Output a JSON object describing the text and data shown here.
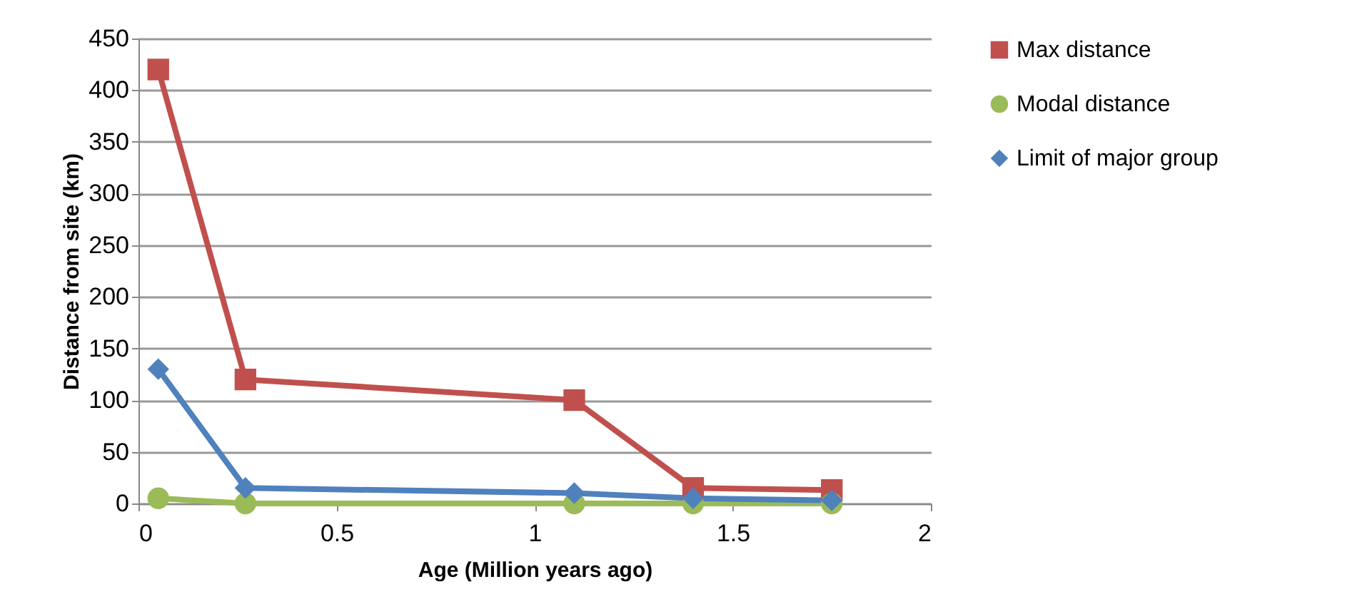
{
  "chart_data": {
    "type": "line",
    "xlabel": "Age (Million years ago)",
    "ylabel": "Distance from site (km)",
    "x": [
      0.05,
      0.27,
      1.1,
      1.4,
      1.75
    ],
    "series": [
      {
        "name": "Max distance",
        "color": "#c0504d",
        "marker": "square",
        "values": [
          420,
          120,
          100,
          15,
          13
        ]
      },
      {
        "name": "Modal distance",
        "color": "#9bbb59",
        "marker": "circle",
        "values": [
          5,
          0,
          0,
          0,
          0
        ]
      },
      {
        "name": "Limit of major group",
        "color": "#4f81bd",
        "marker": "diamond",
        "values": [
          130,
          15,
          10,
          5,
          3
        ]
      }
    ],
    "xlim": [
      0,
      2
    ],
    "xticks": [
      0,
      0.5,
      1,
      1.5,
      2
    ],
    "ylim": [
      0,
      450
    ],
    "yticks": [
      0,
      50,
      100,
      150,
      200,
      250,
      300,
      350,
      400,
      450
    ],
    "grid": "y",
    "legend": "right",
    "line_style": "solid"
  }
}
